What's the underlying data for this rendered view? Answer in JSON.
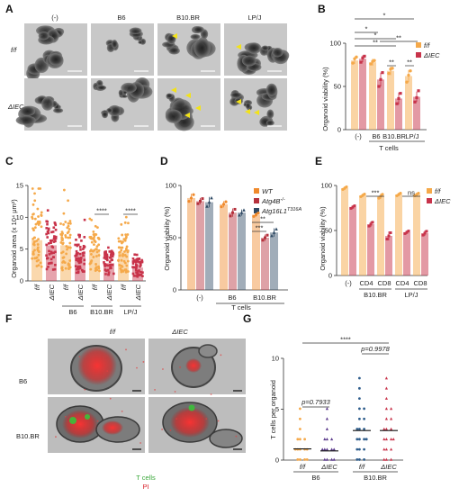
{
  "colors": {
    "ff": "#f5a94a",
    "iec": "#c8334a",
    "wt": "#f08a2c",
    "atg4b": "#b5313c",
    "atg16": "#2f4a64"
  },
  "panel_labels": [
    "A",
    "B",
    "C",
    "D",
    "E",
    "F",
    "G"
  ],
  "panelA": {
    "col_headers": [
      "(-)",
      "B6",
      "B10.BR",
      "LP/J"
    ],
    "row_labels": [
      "f/f",
      "ΔIEC"
    ]
  },
  "panelF": {
    "col_headers": [
      "f/f",
      "ΔIEC"
    ],
    "row_labels": [
      "B6",
      "B10.BR"
    ],
    "legend": [
      "T cells",
      "PI"
    ]
  },
  "chart_data": [
    {
      "panel": "B",
      "type": "bar",
      "ylabel": "Organoid viability (%)",
      "ylim": [
        0,
        100
      ],
      "yticks": [
        0,
        50,
        100
      ],
      "categories": [
        "(-)",
        "B6",
        "B10.BR",
        "LP/J"
      ],
      "group_label": "T cells",
      "series": [
        {
          "name": "f/f",
          "values": [
            80,
            78,
            68,
            62
          ],
          "err": [
            4,
            4,
            5,
            7
          ],
          "points": [
            [
              77,
              82,
              84
            ],
            [
              76,
              79,
              80
            ],
            [
              65,
              70,
              71
            ],
            [
              55,
              63,
              68
            ]
          ]
        },
        {
          "name": "ΔIEC",
          "values": [
            82,
            58,
            36,
            38
          ],
          "err": [
            4,
            8,
            7,
            6
          ],
          "points": [
            [
              78,
              83,
              85
            ],
            [
              50,
              58,
              66
            ],
            [
              30,
              36,
              42
            ],
            [
              32,
              37,
              45
            ]
          ]
        }
      ],
      "significance": [
        "*",
        "*",
        "*",
        "**",
        "**",
        "**",
        "**"
      ]
    },
    {
      "panel": "C",
      "type": "scatter",
      "ylabel": "Organoid area (x 10⁴ μm²)",
      "ylim": [
        0,
        15
      ],
      "yticks": [
        0,
        5,
        10,
        15
      ],
      "categories": [
        "f/f",
        "ΔIEC",
        "f/f",
        "ΔIEC",
        "f/f",
        "ΔIEC",
        "f/f",
        "ΔIEC"
      ],
      "group_labels": [
        "B6",
        "B10.BR",
        "LP/J"
      ],
      "group_labels_key": [
        "B6",
        "B10.BR",
        "LP/J"
      ],
      "means": [
        6.4,
        5.6,
        5.6,
        4.3,
        4.8,
        2.8,
        4.6,
        2.1
      ],
      "significance": [
        "****",
        "****"
      ]
    },
    {
      "panel": "D",
      "type": "bar",
      "ylabel": "Organoid viability (%)",
      "ylim": [
        0,
        100
      ],
      "yticks": [
        0,
        50,
        100
      ],
      "categories": [
        "(-)",
        "B6",
        "B10.BR"
      ],
      "group_label": "T cells",
      "series": [
        {
          "name": "WT",
          "values": [
            88,
            82,
            72
          ],
          "err": [
            4,
            3,
            2
          ]
        },
        {
          "name": "Atg4B⁻˸⁻",
          "values": [
            85,
            74,
            50
          ],
          "err": [
            3,
            4,
            3
          ]
        },
        {
          "name": "Atg16L1",
          "values": [
            84,
            74,
            55
          ],
          "err": [
            5,
            3,
            4
          ]
        }
      ],
      "legend_texts": [
        "WT",
        "Atg4B",
        "Atg16L1"
      ],
      "legend_sups": [
        "-/-",
        "T316A"
      ],
      "significance": [
        "**",
        "***"
      ]
    },
    {
      "panel": "E",
      "type": "bar",
      "ylabel": "Organoid viability (%)",
      "ylim": [
        0,
        100
      ],
      "yticks": [
        0,
        50,
        100
      ],
      "categories": [
        "(-)",
        "CD4",
        "CD8",
        "CD4",
        "CD8"
      ],
      "group_labels": [
        "B10.BR",
        "LP/J"
      ],
      "series": [
        {
          "name": "f/f",
          "values": [
            97,
            89,
            88,
            90,
            90
          ],
          "err": [
            2,
            2,
            3,
            2,
            2
          ]
        },
        {
          "name": "ΔIEC",
          "values": [
            76,
            57,
            44,
            48,
            47
          ],
          "err": [
            2,
            3,
            5,
            2,
            3
          ]
        }
      ],
      "significance": [
        "***",
        "ns"
      ]
    },
    {
      "panel": "G",
      "type": "scatter",
      "ylabel": "T cells per organoid",
      "ylim": [
        0,
        10
      ],
      "yticks": [
        0,
        5,
        10
      ],
      "categories": [
        "f/f",
        "ΔIEC",
        "f/f",
        "ΔIEC"
      ],
      "group_labels": [
        "B6",
        "B10.BR"
      ],
      "means": [
        1.1,
        0.9,
        2.9,
        2.9
      ],
      "significance": [
        "****"
      ],
      "p_values": [
        "p=0.7933",
        "p=0.9978"
      ]
    }
  ]
}
